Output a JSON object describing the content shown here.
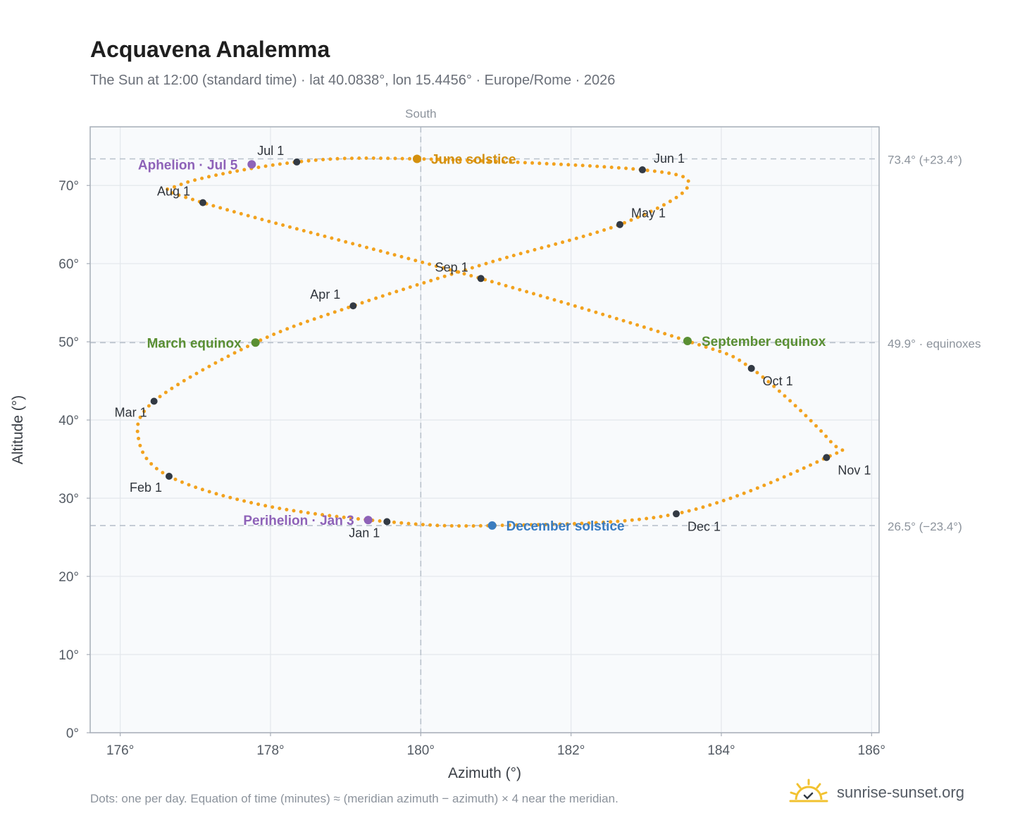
{
  "header": {
    "title": "Acquavena Analemma",
    "subtitle": "The Sun at 12:00 (standard time) · lat 40.0838°, lon 15.4456° · Europe/Rome · 2026"
  },
  "footer": {
    "note": "Dots: one per day. Equation of time (minutes) ≈ (meridian azimuth − azimuth) × 4 near the meridian.",
    "brand": "sunrise-sunset.org"
  },
  "colors": {
    "path": "#f2a21e",
    "month_marker": "#333a44",
    "solstice_june": "#d4900e",
    "solstice_december": "#3a7cc0",
    "equinox": "#5a8f33",
    "apsis": "#8e62b8",
    "grid": "#e3e7ec",
    "plot_bg": "#f8fafc",
    "axis": "#a6adb7",
    "reference": "#b9c2cb"
  },
  "chart_data": {
    "type": "scatter",
    "xlabel": "Azimuth (°)",
    "ylabel": "Altitude (°)",
    "xlim": [
      175.6,
      186.1
    ],
    "ylim": [
      0,
      77.5
    ],
    "x_ticks": [
      176,
      178,
      180,
      182,
      184,
      186
    ],
    "x_tick_labels": [
      "176°",
      "178°",
      "180°",
      "182°",
      "184°",
      "186°"
    ],
    "y_ticks": [
      0,
      10,
      20,
      30,
      40,
      50,
      60,
      70
    ],
    "y_tick_labels": [
      "0°",
      "10°",
      "20°",
      "30°",
      "40°",
      "50°",
      "60°",
      "70°"
    ],
    "grid": true,
    "reference_lines": [
      {
        "axis": "x",
        "value": 180,
        "label": "South"
      },
      {
        "axis": "y",
        "value": 73.4,
        "label": "73.4° (+23.4°)"
      },
      {
        "axis": "y",
        "value": 49.9,
        "label": "49.9° · equinoxes"
      },
      {
        "axis": "y",
        "value": 26.5,
        "label": "26.5° (−23.4°)"
      }
    ],
    "daily_path": {
      "description": "one dot per day",
      "waypoints": [
        {
          "date": "Jan 1",
          "azimuth": 179.55,
          "altitude": 27.0
        },
        {
          "date": "Jan 20",
          "azimuth": 177.9,
          "altitude": 29.1
        },
        {
          "date": "Feb 1",
          "azimuth": 176.65,
          "altitude": 32.8
        },
        {
          "date": "Feb 12",
          "azimuth": 176.25,
          "altitude": 37.3
        },
        {
          "date": "Mar 1",
          "azimuth": 176.45,
          "altitude": 42.4
        },
        {
          "date": "Mar 20",
          "azimuth": 177.8,
          "altitude": 49.9
        },
        {
          "date": "Apr 1",
          "azimuth": 179.1,
          "altitude": 54.6
        },
        {
          "date": "Apr 15",
          "azimuth": 180.9,
          "altitude": 60.1
        },
        {
          "date": "May 1",
          "azimuth": 182.65,
          "altitude": 65.0
        },
        {
          "date": "May 14",
          "azimuth": 183.55,
          "altitude": 69.8
        },
        {
          "date": "Jun 1",
          "azimuth": 182.95,
          "altitude": 72.0
        },
        {
          "date": "Jun 21",
          "azimuth": 179.95,
          "altitude": 73.4
        },
        {
          "date": "Jul 1",
          "azimuth": 178.35,
          "altitude": 73.0
        },
        {
          "date": "Jul 26",
          "azimuth": 176.8,
          "altitude": 70.1
        },
        {
          "date": "Aug 1",
          "azimuth": 177.1,
          "altitude": 67.8
        },
        {
          "date": "Sep 1",
          "azimuth": 180.8,
          "altitude": 58.1
        },
        {
          "date": "Sep 22",
          "azimuth": 183.55,
          "altitude": 50.1
        },
        {
          "date": "Oct 1",
          "azimuth": 184.4,
          "altitude": 46.6
        },
        {
          "date": "Nov 3",
          "azimuth": 185.45,
          "altitude": 37.3
        },
        {
          "date": "Nov 1",
          "azimuth": 185.4,
          "altitude": 35.2
        },
        {
          "date": "Dec 1",
          "azimuth": 183.4,
          "altitude": 28.0
        },
        {
          "date": "Dec 21",
          "azimuth": 180.95,
          "altitude": 26.5
        },
        {
          "date": "Jan 1",
          "azimuth": 179.55,
          "altitude": 27.0
        }
      ]
    },
    "month_markers": [
      {
        "label": "Jan 1",
        "azimuth": 179.55,
        "altitude": 27.0,
        "label_pos": "below-left"
      },
      {
        "label": "Feb 1",
        "azimuth": 176.65,
        "altitude": 32.8,
        "label_pos": "below-left"
      },
      {
        "label": "Mar 1",
        "azimuth": 176.45,
        "altitude": 42.4,
        "label_pos": "below-left"
      },
      {
        "label": "Apr 1",
        "azimuth": 179.1,
        "altitude": 54.6,
        "label_pos": "above-left"
      },
      {
        "label": "May 1",
        "azimuth": 182.65,
        "altitude": 65.0,
        "label_pos": "above-right"
      },
      {
        "label": "Jun 1",
        "azimuth": 182.95,
        "altitude": 72.0,
        "label_pos": "above-right"
      },
      {
        "label": "Jul 1",
        "azimuth": 178.35,
        "altitude": 73.0,
        "label_pos": "above-left"
      },
      {
        "label": "Aug 1",
        "azimuth": 177.1,
        "altitude": 67.8,
        "label_pos": "above-left"
      },
      {
        "label": "Sep 1",
        "azimuth": 180.8,
        "altitude": 58.1,
        "label_pos": "above-left"
      },
      {
        "label": "Oct 1",
        "azimuth": 184.4,
        "altitude": 46.6,
        "label_pos": "below-right"
      },
      {
        "label": "Nov 1",
        "azimuth": 185.4,
        "altitude": 35.2,
        "label_pos": "below-right"
      },
      {
        "label": "Dec 1",
        "azimuth": 183.4,
        "altitude": 28.0,
        "label_pos": "below-right"
      }
    ],
    "events": [
      {
        "label": "June solstice",
        "azimuth": 179.95,
        "altitude": 73.4,
        "kind": "solstice_june",
        "side": "right"
      },
      {
        "label": "December solstice",
        "azimuth": 180.95,
        "altitude": 26.5,
        "kind": "solstice_december",
        "side": "right"
      },
      {
        "label": "March equinox",
        "azimuth": 177.8,
        "altitude": 49.9,
        "kind": "equinox",
        "side": "left"
      },
      {
        "label": "September equinox",
        "azimuth": 183.55,
        "altitude": 50.1,
        "kind": "equinox",
        "side": "right"
      },
      {
        "label": "Aphelion · Jul 5",
        "azimuth": 177.75,
        "altitude": 72.7,
        "kind": "apsis",
        "side": "left"
      },
      {
        "label": "Perihelion · Jan 3",
        "azimuth": 179.3,
        "altitude": 27.2,
        "kind": "apsis",
        "side": "left"
      }
    ]
  }
}
